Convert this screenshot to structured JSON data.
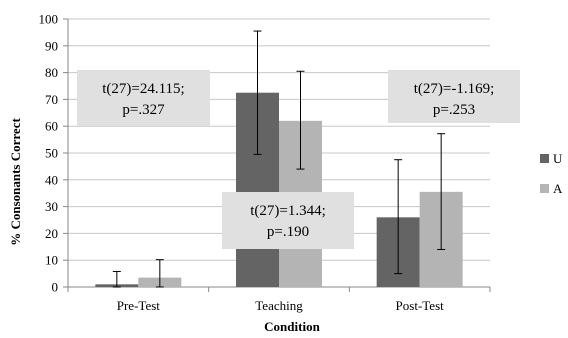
{
  "chart_data": {
    "type": "bar",
    "categories": [
      "Pre-Test",
      "Teaching",
      "Post-Test"
    ],
    "series": [
      {
        "name": "U",
        "color": "#646464",
        "values": [
          1,
          72.5,
          26
        ],
        "err_low": [
          0,
          49.5,
          5
        ],
        "err_high": [
          5.8,
          95.5,
          47.5
        ]
      },
      {
        "name": "A",
        "color": "#b4b4b4",
        "values": [
          3.5,
          62,
          35.5
        ],
        "err_low": [
          0,
          44,
          14
        ],
        "err_high": [
          10.2,
          80.5,
          57.2
        ]
      }
    ],
    "xlabel": "Condition",
    "ylabel": "% Consonants Correct",
    "ylim": [
      0,
      100
    ],
    "yticks": [
      0,
      10,
      20,
      30,
      40,
      50,
      60,
      70,
      80,
      90,
      100
    ],
    "grid": true,
    "legend_position": "right",
    "annotations": [
      {
        "line1": "t(27)=24.115;",
        "line2": "p=.327",
        "near": "Pre-Test"
      },
      {
        "line1": "t(27)=1.344;",
        "line2": "p=.190",
        "near": "Teaching"
      },
      {
        "line1": "t(27)=-1.169;",
        "line2": "p=.253",
        "near": "Post-Test"
      }
    ],
    "annotation_box_color": "#e0e0e0",
    "gridline_color": "#c8c8c8",
    "axis_color": "#888888"
  }
}
